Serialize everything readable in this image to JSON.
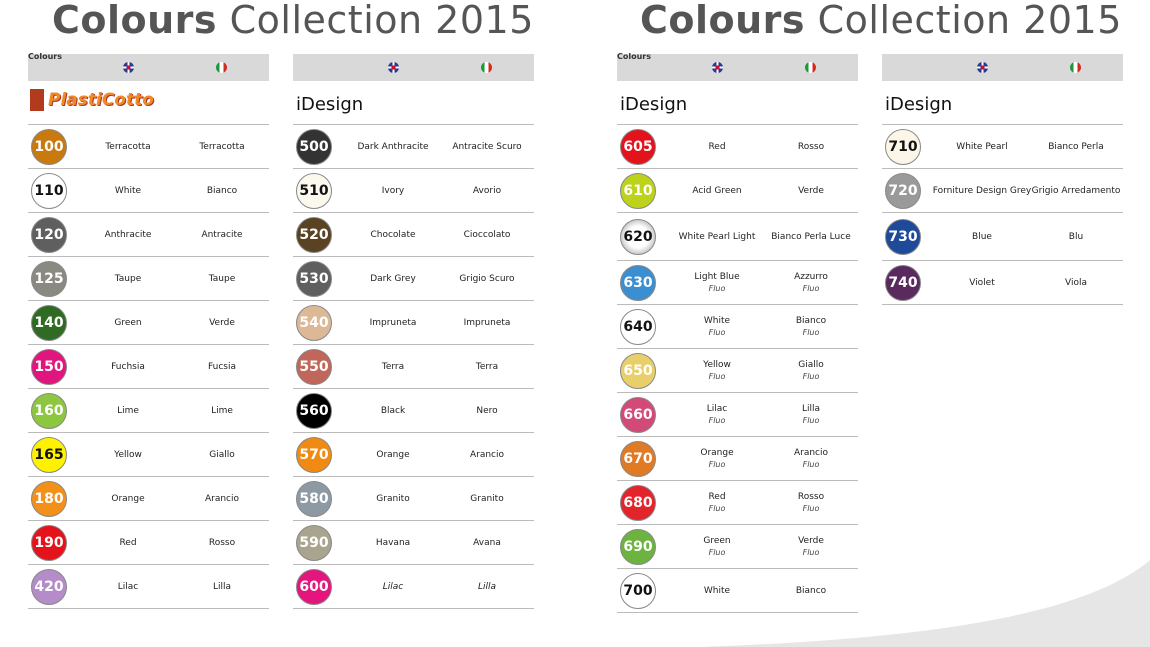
{
  "titles": [
    {
      "bold": "Colours",
      "rest": " Collection 2015"
    },
    {
      "bold": "Colours",
      "rest": " Collection 2015"
    }
  ],
  "header_label": "Colours",
  "icons": {
    "en": "uk-flag-icon",
    "it": "italy-flag-icon"
  },
  "columns": [
    {
      "brand": "PlastiCotto",
      "rows": [
        {
          "code": "100",
          "color": "#c87a0f",
          "text": "#fff",
          "en": "Terracotta",
          "it": "Terracotta"
        },
        {
          "code": "110",
          "color": "#ffffff",
          "text": "#111",
          "en": "White",
          "it": "Bianco"
        },
        {
          "code": "120",
          "color": "#5f5f5f",
          "text": "#fff",
          "en": "Anthracite",
          "it": "Antracite"
        },
        {
          "code": "125",
          "color": "#8a8a82",
          "text": "#fff",
          "en": "Taupe",
          "it": "Taupe"
        },
        {
          "code": "140",
          "color": "#2f6b22",
          "text": "#fff",
          "en": "Green",
          "it": "Verde"
        },
        {
          "code": "150",
          "color": "#e0157d",
          "text": "#fff",
          "en": "Fuchsia",
          "it": "Fucsia"
        },
        {
          "code": "160",
          "color": "#8dc63f",
          "text": "#fff",
          "en": "Lime",
          "it": "Lime"
        },
        {
          "code": "165",
          "color": "#fff200",
          "text": "#111",
          "en": "Yellow",
          "it": "Giallo"
        },
        {
          "code": "180",
          "color": "#f39019",
          "text": "#fff",
          "en": "Orange",
          "it": "Arancio"
        },
        {
          "code": "190",
          "color": "#e3121b",
          "text": "#fff",
          "en": "Red",
          "it": "Rosso"
        },
        {
          "code": "420",
          "color": "#b48cc8",
          "text": "#fff",
          "en": "Lilac",
          "it": "Lilla"
        }
      ]
    },
    {
      "brand": "iDesign",
      "rows": [
        {
          "code": "500",
          "color": "#333333",
          "text": "#fff",
          "en": "Dark Anthracite",
          "it": "Antracite Scuro"
        },
        {
          "code": "510",
          "color": "#fbf8ee",
          "text": "#111",
          "en": "Ivory",
          "it": "Avorio"
        },
        {
          "code": "520",
          "color": "#5a4322",
          "text": "#fff",
          "en": "Chocolate",
          "it": "Cioccolato"
        },
        {
          "code": "530",
          "color": "#5f5f5f",
          "text": "#fff",
          "en": "Dark Grey",
          "it": "Grigio Scuro"
        },
        {
          "code": "540",
          "color": "#dcb896",
          "text": "#fff",
          "en": "Impruneta",
          "it": "Impruneta"
        },
        {
          "code": "550",
          "color": "#c0665a",
          "text": "#fff",
          "en": "Terra",
          "it": "Terra"
        },
        {
          "code": "560",
          "color": "#000000",
          "text": "#fff",
          "en": "Black",
          "it": "Nero"
        },
        {
          "code": "570",
          "color": "#f08a12",
          "text": "#fff",
          "en": "Orange",
          "it": "Arancio"
        },
        {
          "code": "580",
          "color": "#8d9aa4",
          "text": "#fff",
          "en": "Granito",
          "it": "Granito"
        },
        {
          "code": "590",
          "color": "#a9a48e",
          "text": "#fff",
          "en": "Havana",
          "it": "Avana"
        },
        {
          "code": "600",
          "color": "#e4157d",
          "text": "#fff",
          "en": "Lilac",
          "it": "Lilla",
          "italic": true
        }
      ]
    },
    {
      "brand": "iDesign",
      "rows": [
        {
          "code": "605",
          "color": "#e3121b",
          "text": "#fff",
          "en": "Red",
          "it": "Rosso"
        },
        {
          "code": "610",
          "color": "#bcd21b",
          "text": "#fff",
          "en": "Acid Green",
          "it": "Verde"
        },
        {
          "code": "620",
          "color": "#f4f4f4",
          "text": "#111",
          "en": "White Pearl Light",
          "it": "Bianco Perla Luce",
          "tall": true
        },
        {
          "code": "630",
          "color": "#3b8fd0",
          "text": "#fff",
          "en": "Light Blue",
          "it": "Azzurro",
          "sub": "Fluo"
        },
        {
          "code": "640",
          "color": "#ffffff",
          "text": "#111",
          "en": "White",
          "it": "Bianco",
          "sub": "Fluo"
        },
        {
          "code": "650",
          "color": "#e8cf6a",
          "text": "#fff",
          "en": "Yellow",
          "it": "Giallo",
          "sub": "Fluo"
        },
        {
          "code": "660",
          "color": "#d24a78",
          "text": "#fff",
          "en": "Lilac",
          "it": "Lilla",
          "sub": "Fluo"
        },
        {
          "code": "670",
          "color": "#e07a25",
          "text": "#fff",
          "en": "Orange",
          "it": "Arancio",
          "sub": "Fluo"
        },
        {
          "code": "680",
          "color": "#e3242b",
          "text": "#fff",
          "en": "Red",
          "it": "Rosso",
          "sub": "Fluo"
        },
        {
          "code": "690",
          "color": "#6db33f",
          "text": "#fff",
          "en": "Green",
          "it": "Verde",
          "sub": "Fluo"
        },
        {
          "code": "700",
          "color": "#ffffff",
          "text": "#111",
          "en": "White",
          "it": "Bianco"
        }
      ]
    },
    {
      "brand": "iDesign",
      "rows": [
        {
          "code": "710",
          "color": "#fbf6e8",
          "text": "#111",
          "en": "White Pearl",
          "it": "Bianco Perla"
        },
        {
          "code": "720",
          "color": "#9a9a9a",
          "text": "#fff",
          "en": "Forniture Design Grey",
          "it": "Grigio Arredamento"
        },
        {
          "code": "730",
          "color": "#1f4a9a",
          "text": "#fff",
          "en": "Blue",
          "it": "Blu",
          "tall": true
        },
        {
          "code": "740",
          "color": "#5a2a5e",
          "text": "#fff",
          "en": "Violet",
          "it": "Viola"
        }
      ]
    }
  ]
}
